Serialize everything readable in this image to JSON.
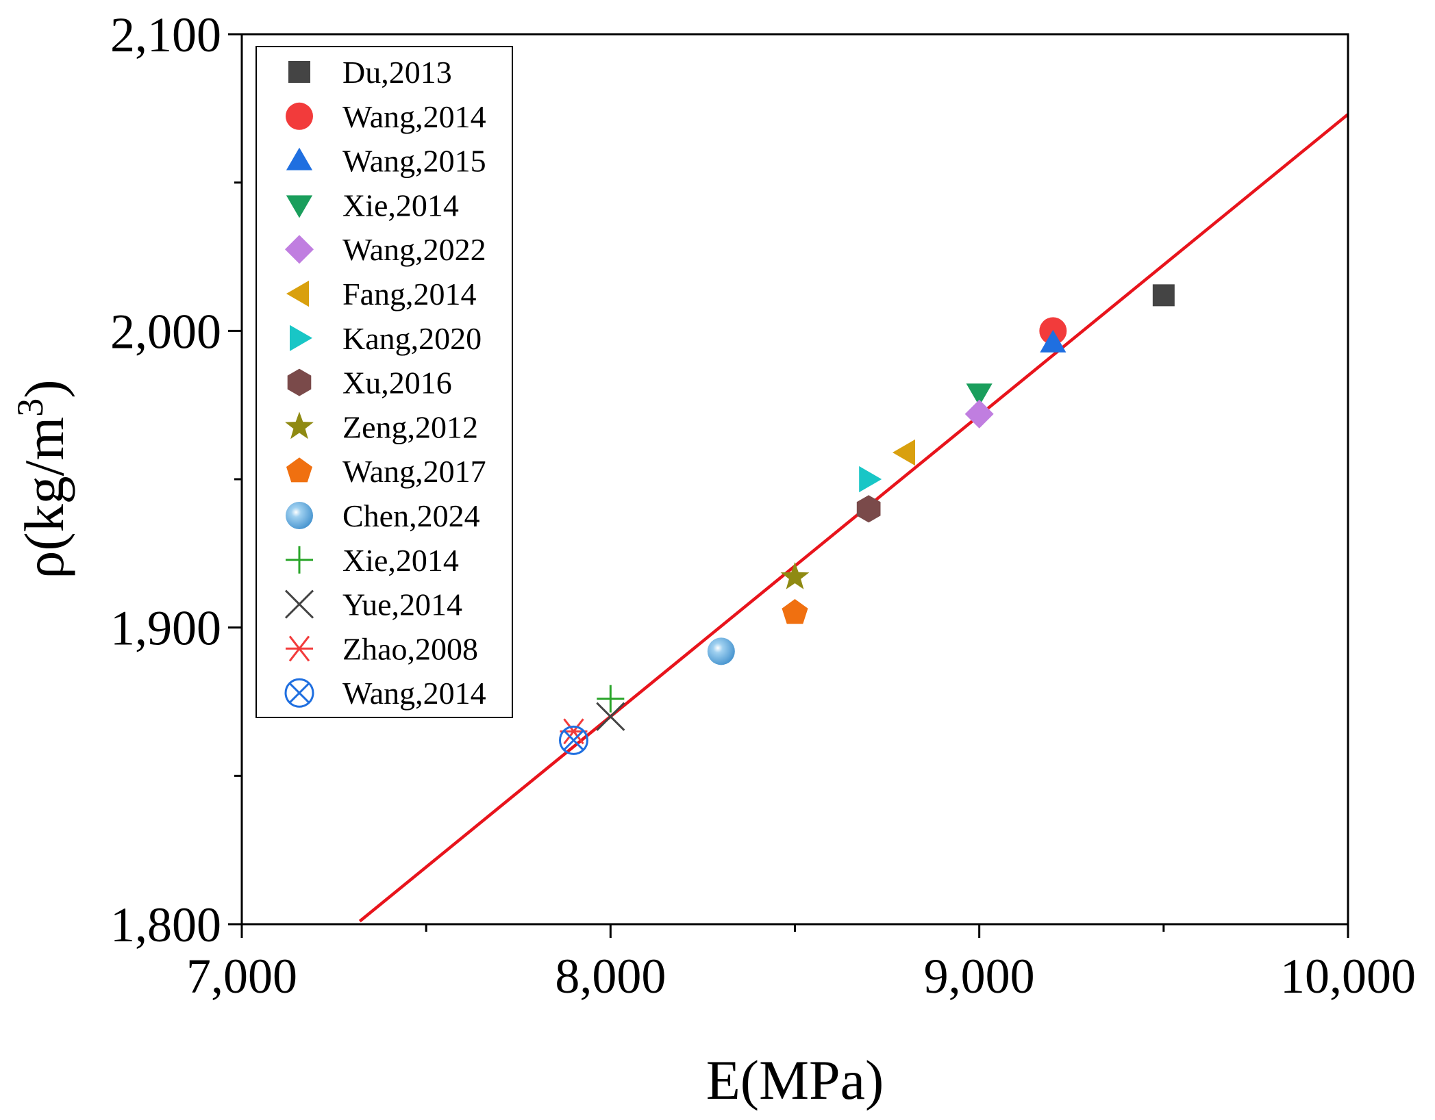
{
  "chart_data": {
    "type": "scatter",
    "title": "",
    "xlabel": "E(MPa)",
    "ylabel_main": "ρ(kg/m",
    "ylabel_sup": "3",
    "ylabel_close": ")",
    "xlim": [
      7000,
      10000
    ],
    "ylim": [
      1800,
      2100
    ],
    "x_major_ticks": [
      7000,
      8000,
      9000,
      10000
    ],
    "x_tick_labels": [
      "7,000",
      "8,000",
      "9,000",
      "10,000"
    ],
    "x_minor_ticks": [
      7500,
      8500,
      9500
    ],
    "y_major_ticks": [
      1800,
      1900,
      2000,
      2100
    ],
    "y_tick_labels": [
      "1,800",
      "1,900",
      "2,000",
      "2,100"
    ],
    "y_minor_ticks": [
      1850,
      1950,
      2050
    ],
    "grid": false,
    "legend_position": "top-left",
    "fit_line": {
      "color": "#e8141c",
      "x": [
        7320,
        10000
      ],
      "y": [
        1801,
        2073
      ]
    },
    "series": [
      {
        "name": "Du,2013",
        "marker": "square",
        "color": "#444444",
        "x": [
          9500
        ],
        "y": [
          2012
        ]
      },
      {
        "name": "Wang,2014",
        "marker": "circle",
        "color": "#f23b3b",
        "x": [
          9200
        ],
        "y": [
          2000
        ]
      },
      {
        "name": "Wang,2015",
        "marker": "triangle-up",
        "color": "#1f6fe0",
        "x": [
          9200
        ],
        "y": [
          1996
        ]
      },
      {
        "name": "Xie,2014",
        "marker": "triangle-down",
        "color": "#1a9e5c",
        "x": [
          9000
        ],
        "y": [
          1979
        ]
      },
      {
        "name": "Wang,2022",
        "marker": "diamond",
        "color": "#c07ee0",
        "x": [
          9000
        ],
        "y": [
          1972
        ]
      },
      {
        "name": "Fang,2014",
        "marker": "triangle-left",
        "color": "#d9a00e",
        "x": [
          8800
        ],
        "y": [
          1959
        ]
      },
      {
        "name": "Kang,2020",
        "marker": "triangle-right",
        "color": "#18c6c6",
        "x": [
          8700
        ],
        "y": [
          1950
        ]
      },
      {
        "name": "Xu,2016",
        "marker": "hexagon",
        "color": "#7a4a4a",
        "x": [
          8700
        ],
        "y": [
          1940
        ]
      },
      {
        "name": "Zeng,2012",
        "marker": "star",
        "color": "#8f8a12",
        "x": [
          8500
        ],
        "y": [
          1917
        ]
      },
      {
        "name": "Wang,2017",
        "marker": "pentagon",
        "color": "#f07010",
        "x": [
          8500
        ],
        "y": [
          1905
        ]
      },
      {
        "name": "Chen,2024",
        "marker": "sphere",
        "color": "#3f8fcc",
        "x": [
          8300
        ],
        "y": [
          1892
        ]
      },
      {
        "name": "Xie,2014",
        "marker": "plus",
        "color": "#2aa52a",
        "x": [
          8000
        ],
        "y": [
          1876
        ]
      },
      {
        "name": "Yue,2014",
        "marker": "cross",
        "color": "#444444",
        "x": [
          8000
        ],
        "y": [
          1870
        ]
      },
      {
        "name": "Zhao,2008",
        "marker": "asterisk",
        "color": "#f23b3b",
        "x": [
          7900
        ],
        "y": [
          1865
        ]
      },
      {
        "name": "Wang,2014",
        "marker": "circle-x",
        "color": "#1f6fe0",
        "x": [
          7900
        ],
        "y": [
          1862
        ]
      }
    ]
  }
}
